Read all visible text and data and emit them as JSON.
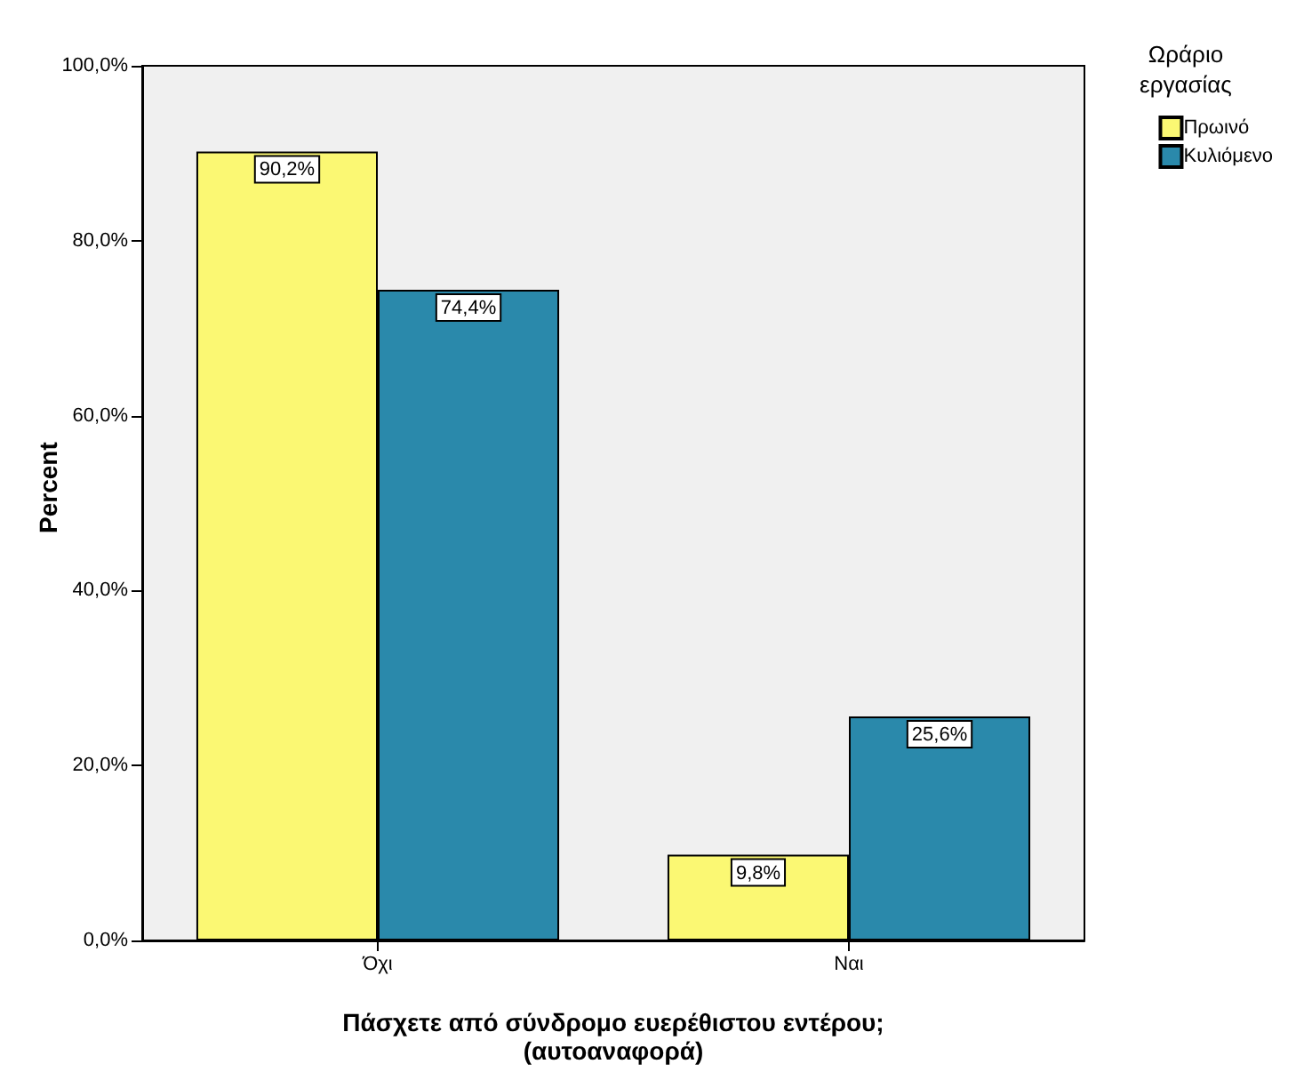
{
  "chart_data": {
    "type": "bar",
    "xlabel": "Πάσχετε από σύνδρομο ευερέθιστου εντέρου; (αυτοαναφορά)",
    "ylabel": "Percent",
    "legend_title": "Ωράριο εργασίας",
    "categories": [
      "Όχι",
      "Ναι"
    ],
    "series": [
      {
        "name": "Πρωινό",
        "color": "#fbf873",
        "values": [
          90.2,
          9.8
        ],
        "value_labels": [
          "90,2%",
          "9,8%"
        ]
      },
      {
        "name": "Κυλιόμενο",
        "color": "#2a89ab",
        "values": [
          74.4,
          25.6
        ],
        "value_labels": [
          "74,4%",
          "25,6%"
        ]
      }
    ],
    "ylim": [
      0,
      100
    ],
    "yticks": [
      {
        "value": 0,
        "label": "0,0%"
      },
      {
        "value": 20,
        "label": "20,0%"
      },
      {
        "value": 40,
        "label": "40,0%"
      },
      {
        "value": 60,
        "label": "60,0%"
      },
      {
        "value": 80,
        "label": "80,0%"
      },
      {
        "value": 100,
        "label": "100,0%"
      }
    ],
    "grid": false,
    "legend": "right"
  }
}
